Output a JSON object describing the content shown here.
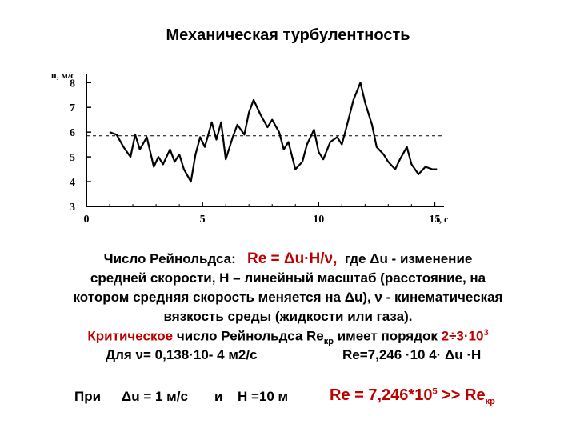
{
  "title": "Механическая турбулентность",
  "colors": {
    "accent": "#c00000",
    "ink": "#000000"
  },
  "chart_data": {
    "type": "line",
    "ylabel": "u, м/с",
    "xlabel": "t, с",
    "xlim": [
      0,
      15.4
    ],
    "ylim": [
      3,
      8.3
    ],
    "x_ticks": [
      "0",
      "5",
      "10",
      "15"
    ],
    "y_ticks": [
      "3",
      "4",
      "5",
      "6",
      "7",
      "8"
    ],
    "mean_line": 5.85,
    "series": [
      {
        "x": [
          1.0,
          1.3,
          1.6,
          1.9,
          2.1,
          2.3,
          2.6,
          2.9,
          3.1,
          3.3,
          3.6,
          3.8,
          4.0,
          4.2,
          4.5,
          4.7,
          4.9,
          5.1,
          5.4,
          5.6,
          5.8,
          6.0,
          6.3,
          6.5,
          6.8,
          7.0,
          7.2,
          7.5,
          7.8,
          8.0,
          8.3,
          8.5,
          8.7,
          9.0,
          9.3,
          9.5,
          9.8,
          10.0,
          10.2,
          10.5,
          10.8,
          11.0,
          11.2,
          11.5,
          11.8,
          12.0,
          12.3,
          12.5,
          12.8,
          13.0,
          13.3,
          13.5,
          13.8,
          14.0,
          14.3,
          14.6,
          14.9,
          15.1
        ],
        "y": [
          6.0,
          5.9,
          5.4,
          5.0,
          5.9,
          5.3,
          5.8,
          4.6,
          5.0,
          4.7,
          5.3,
          4.8,
          5.1,
          4.5,
          4.0,
          5.1,
          5.8,
          5.4,
          6.4,
          5.7,
          6.4,
          4.9,
          5.8,
          6.3,
          5.9,
          6.8,
          7.3,
          6.7,
          6.2,
          6.5,
          6.0,
          5.3,
          5.6,
          4.5,
          4.8,
          5.5,
          6.1,
          5.2,
          4.9,
          5.6,
          5.8,
          5.5,
          6.2,
          7.3,
          8.0,
          7.2,
          6.3,
          5.4,
          5.1,
          4.8,
          4.5,
          4.9,
          5.4,
          4.7,
          4.3,
          4.6,
          4.5,
          4.5
        ]
      }
    ]
  },
  "text": {
    "line1_pre": "Число Рейнольдса:",
    "line1_re": "Re = Δu·H/ν,",
    "line1_post": "где Δu - изменение",
    "line2": "средней скорости, H – линейный масштаб (расстояние, на",
    "line3": "котором средняя скорость меняется на Δu), ν - кинематическая",
    "line4": "вязкость среды (жидкости или газа).",
    "line5_red": "Критическое",
    "line5_mid": "число Рейнольдса Re",
    "line5_sub": "кр",
    "line5_post": "имеет порядок",
    "line5_val": "2÷3·10",
    "line5_sup": "3",
    "line6_left": "Для ν= 0,138·10- 4 м2/с",
    "line6_right": "Re=7,246 ·10 4· Δu ·H",
    "line7_pre": "При",
    "line7_du": "Δu = 1 м/с",
    "line7_and": "и",
    "line7_h": "H =10 м",
    "line7_red": "Re = 7,246*10",
    "line7_sup": "5",
    "line7_tail": ">> Re",
    "line7_sub": "кр"
  }
}
